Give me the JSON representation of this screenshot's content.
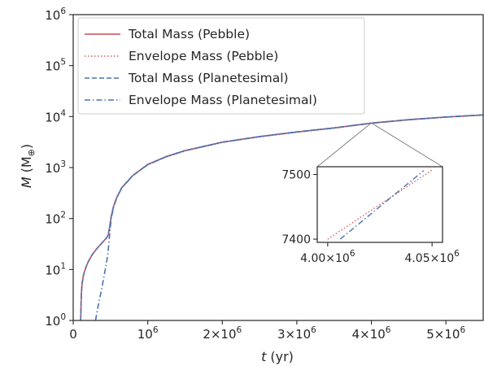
{
  "chart_data": {
    "type": "line",
    "xlabel_var": "t",
    "xlabel_unit": "(yr)",
    "ylabel_var": "M",
    "ylabel_unit_open": "(M",
    "ylabel_unit_sub": "⊕",
    "ylabel_unit_close": ")",
    "xlim": [
      0,
      5500000
    ],
    "ylim": [
      1,
      1000000
    ],
    "y_scale": "log",
    "grid": false,
    "legend_position": "top-left",
    "x_ticks": [
      {
        "value": 0,
        "base": "0",
        "exp": ""
      },
      {
        "value": 1000000,
        "base": "10",
        "exp": "6"
      },
      {
        "value": 2000000,
        "base": "2×10",
        "exp": "6"
      },
      {
        "value": 3000000,
        "base": "3×10",
        "exp": "6"
      },
      {
        "value": 4000000,
        "base": "4×10",
        "exp": "6"
      },
      {
        "value": 5000000,
        "base": "5×10",
        "exp": "6"
      }
    ],
    "y_ticks": [
      {
        "value": 1,
        "base": "10",
        "exp": "0"
      },
      {
        "value": 10,
        "base": "10",
        "exp": "1"
      },
      {
        "value": 100,
        "base": "10",
        "exp": "2"
      },
      {
        "value": 1000,
        "base": "10",
        "exp": "3"
      },
      {
        "value": 10000,
        "base": "10",
        "exp": "4"
      },
      {
        "value": 100000,
        "base": "10",
        "exp": "5"
      },
      {
        "value": 1000000,
        "base": "10",
        "exp": "6"
      }
    ],
    "series": [
      {
        "name": "Total Mass (Pebble)",
        "color": "#c44e52",
        "dash": "solid",
        "points": [
          [
            100000,
            1
          ],
          [
            105000,
            2
          ],
          [
            110000,
            3.5
          ],
          [
            120000,
            5.5
          ],
          [
            140000,
            8
          ],
          [
            170000,
            11
          ],
          [
            200000,
            14
          ],
          [
            250000,
            19
          ],
          [
            300000,
            24
          ],
          [
            350000,
            29
          ],
          [
            400000,
            35
          ],
          [
            450000,
            42
          ],
          [
            470000,
            48
          ],
          [
            490000,
            70
          ],
          [
            510000,
            110
          ],
          [
            540000,
            170
          ],
          [
            580000,
            250
          ],
          [
            650000,
            400
          ],
          [
            800000,
            700
          ],
          [
            1000000,
            1150
          ],
          [
            1250000,
            1650
          ],
          [
            1500000,
            2150
          ],
          [
            2000000,
            3150
          ],
          [
            2500000,
            4050
          ],
          [
            3000000,
            5000
          ],
          [
            3500000,
            6000
          ],
          [
            4000000,
            7460
          ],
          [
            4500000,
            8700
          ],
          [
            5000000,
            9800
          ],
          [
            5500000,
            10800
          ]
        ]
      },
      {
        "name": "Envelope Mass (Pebble)",
        "color": "#d6615f",
        "dash": "dotted",
        "points": [
          [
            100000,
            1
          ],
          [
            105000,
            2
          ],
          [
            110000,
            3.5
          ],
          [
            120000,
            5.5
          ],
          [
            140000,
            8
          ],
          [
            170000,
            11
          ],
          [
            200000,
            14
          ],
          [
            250000,
            19
          ],
          [
            300000,
            24
          ],
          [
            350000,
            29
          ],
          [
            400000,
            35
          ],
          [
            450000,
            42
          ],
          [
            470000,
            48
          ],
          [
            490000,
            70
          ],
          [
            510000,
            110
          ],
          [
            540000,
            170
          ],
          [
            580000,
            250
          ],
          [
            650000,
            400
          ],
          [
            800000,
            700
          ],
          [
            1000000,
            1130
          ],
          [
            1250000,
            1620
          ],
          [
            1500000,
            2110
          ],
          [
            2000000,
            3100
          ],
          [
            2500000,
            4000
          ],
          [
            3000000,
            4920
          ],
          [
            3500000,
            5900
          ],
          [
            4000000,
            7400
          ],
          [
            4500000,
            8600
          ],
          [
            5000000,
            9700
          ],
          [
            5500000,
            10650
          ]
        ]
      },
      {
        "name": "Total Mass (Planetesimal)",
        "color": "#4c72b0",
        "dash": "dashed",
        "points": [
          [
            100000,
            1
          ],
          [
            105000,
            2
          ],
          [
            110000,
            3.5
          ],
          [
            120000,
            5.5
          ],
          [
            140000,
            8
          ],
          [
            170000,
            11
          ],
          [
            200000,
            14
          ],
          [
            250000,
            19
          ],
          [
            300000,
            24
          ],
          [
            350000,
            29
          ],
          [
            400000,
            35
          ],
          [
            450000,
            42
          ],
          [
            470000,
            48
          ],
          [
            490000,
            70
          ],
          [
            510000,
            110
          ],
          [
            540000,
            170
          ],
          [
            580000,
            250
          ],
          [
            650000,
            400
          ],
          [
            800000,
            700
          ],
          [
            1000000,
            1150
          ],
          [
            1250000,
            1650
          ],
          [
            1500000,
            2150
          ],
          [
            2000000,
            3150
          ],
          [
            2500000,
            4050
          ],
          [
            3000000,
            5000
          ],
          [
            3500000,
            6000
          ],
          [
            4000000,
            7440
          ],
          [
            4500000,
            8690
          ],
          [
            5000000,
            9790
          ],
          [
            5500000,
            10790
          ]
        ]
      },
      {
        "name": "Envelope Mass (Planetesimal)",
        "color": "#4c72b0",
        "dash": "dashdot",
        "points": [
          [
            300000,
            1
          ],
          [
            320000,
            1.5
          ],
          [
            350000,
            2.5
          ],
          [
            380000,
            4
          ],
          [
            410000,
            7
          ],
          [
            440000,
            12
          ],
          [
            465000,
            20
          ],
          [
            480000,
            35
          ],
          [
            495000,
            60
          ],
          [
            510000,
            100
          ],
          [
            540000,
            165
          ],
          [
            580000,
            245
          ],
          [
            650000,
            395
          ],
          [
            800000,
            695
          ],
          [
            1000000,
            1140
          ],
          [
            1250000,
            1640
          ],
          [
            1500000,
            2140
          ],
          [
            2000000,
            3140
          ],
          [
            2500000,
            4040
          ],
          [
            3000000,
            4990
          ],
          [
            3500000,
            5990
          ],
          [
            4000000,
            7400
          ],
          [
            4500000,
            8690
          ],
          [
            5000000,
            9790
          ],
          [
            5500000,
            10790
          ]
        ]
      }
    ],
    "inset": {
      "xlim": [
        3995000,
        4055000
      ],
      "ylim": [
        7395,
        7512
      ],
      "x_ticks": [
        {
          "value": 4000000,
          "label_base": "4.00×10",
          "exp": "6"
        },
        {
          "value": 4050000,
          "label_base": "4.05×10",
          "exp": "6"
        }
      ],
      "y_ticks": [
        {
          "value": 7400,
          "label": "7400"
        },
        {
          "value": 7500,
          "label": "7500"
        }
      ],
      "zoom_point": [
        4000000,
        7500
      ],
      "series": [
        {
          "ref": 1,
          "points": [
            [
              4000000,
              7400
            ],
            [
              4050000,
              7507
            ]
          ]
        },
        {
          "ref": 3,
          "points": [
            [
              4006000,
              7400
            ],
            [
              4046000,
              7506
            ]
          ]
        }
      ]
    }
  }
}
